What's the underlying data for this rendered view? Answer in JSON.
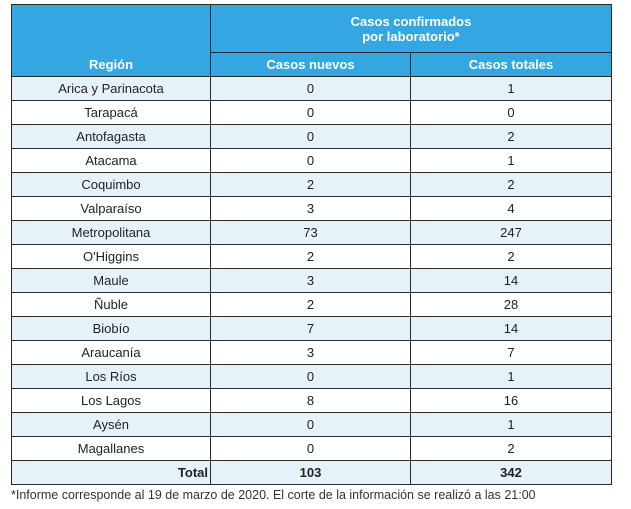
{
  "table": {
    "header_group": "Casos confirmados\npor laboratorio*",
    "header_group_line1": "Casos confirmados",
    "header_group_line2": "por laboratorio*",
    "columns": [
      "Región",
      "Casos nuevos",
      "Casos totales"
    ],
    "total_label": "Total",
    "total_new": 103,
    "total_cumulative": 342
  },
  "footnote": "*Informe corresponde al 19 de marzo de 2020. El corte de la información se realizó a las 21:00",
  "chart_data": {
    "type": "table",
    "title": "",
    "columns": [
      "Región",
      "Casos nuevos",
      "Casos totales"
    ],
    "rows": [
      {
        "region": "Arica y Parinacota",
        "new": 0,
        "total": 1
      },
      {
        "region": "Tarapacá",
        "new": 0,
        "total": 0
      },
      {
        "region": "Antofagasta",
        "new": 0,
        "total": 2
      },
      {
        "region": "Atacama",
        "new": 0,
        "total": 1
      },
      {
        "region": "Coquimbo",
        "new": 2,
        "total": 2
      },
      {
        "region": "Valparaíso",
        "new": 3,
        "total": 4
      },
      {
        "region": "Metropolitana",
        "new": 73,
        "total": 247
      },
      {
        "region": "O'Higgins",
        "new": 2,
        "total": 2
      },
      {
        "region": "Maule",
        "new": 3,
        "total": 14
      },
      {
        "region": "Ñuble",
        "new": 2,
        "total": 28
      },
      {
        "region": "Biobío",
        "new": 7,
        "total": 14
      },
      {
        "region": "Araucanía",
        "new": 3,
        "total": 7
      },
      {
        "region": "Los Ríos",
        "new": 0,
        "total": 1
      },
      {
        "region": "Los Lagos",
        "new": 8,
        "total": 16
      },
      {
        "region": "Aysén",
        "new": 0,
        "total": 1
      },
      {
        "region": "Magallanes",
        "new": 0,
        "total": 2
      }
    ]
  }
}
